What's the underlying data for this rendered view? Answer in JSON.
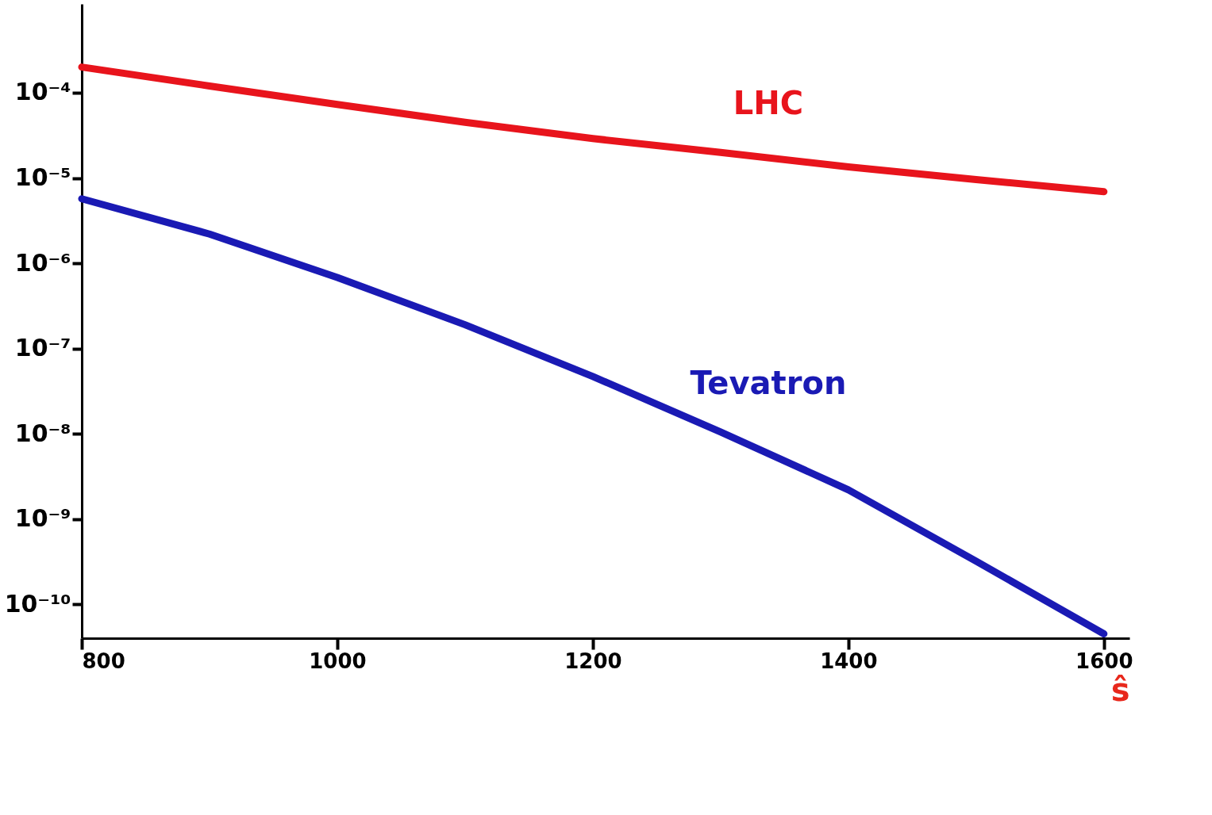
{
  "chart_data": {
    "type": "line",
    "xlabel": "ŝ",
    "x": [
      800,
      900,
      1000,
      1100,
      1200,
      1300,
      1400,
      1500,
      1600
    ],
    "series": [
      {
        "name": "LHC",
        "color": "#e8141c",
        "values": [
          0.0002,
          0.00012,
          7.3e-05,
          4.5e-05,
          2.9e-05,
          2e-05,
          1.35e-05,
          9.6e-06,
          6.9e-06
        ]
      },
      {
        "name": "Tevatron",
        "color": "#1a1ab4",
        "values": [
          5.7e-06,
          2.2e-06,
          6.8e-07,
          1.9e-07,
          4.7e-08,
          1.05e-08,
          2.2e-09,
          3.2e-10,
          4.5e-11
        ]
      }
    ],
    "log": "y",
    "xlim": [
      800,
      1620
    ],
    "ylim": [
      4e-11,
      0.0011
    ],
    "xticks": [
      800,
      1000,
      1200,
      1400,
      1600
    ],
    "yticks": [
      {
        "value": 0.0001,
        "label": "10⁻⁴"
      },
      {
        "value": 1e-05,
        "label": "10⁻⁵"
      },
      {
        "value": 1e-06,
        "label": "10⁻⁶"
      },
      {
        "value": 1e-07,
        "label": "10⁻⁷"
      },
      {
        "value": 1e-08,
        "label": "10⁻⁸"
      },
      {
        "value": 1e-09,
        "label": "10⁻⁹"
      },
      {
        "value": 1e-10,
        "label": "10⁻¹⁰"
      }
    ],
    "grid": false,
    "marker": "none",
    "line_style": "solid"
  }
}
